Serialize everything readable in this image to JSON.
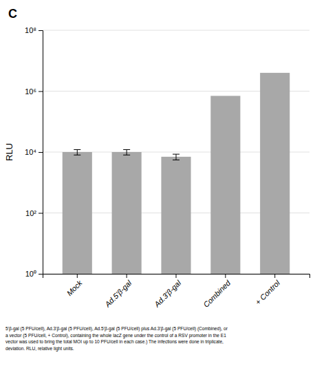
{
  "chart_data": {
    "type": "bar",
    "title": "C",
    "categories": [
      "Mock",
      "Ad.5'β-gal",
      "Ad.3'β-gal",
      "Combined",
      "+ Control"
    ],
    "values": [
      10000,
      10000,
      7000,
      700000,
      4000000
    ],
    "error_bars": [
      2000,
      2000,
      1500,
      0,
      0
    ],
    "color": "#a8a8a8",
    "log": "y",
    "ylabel": "RLU",
    "ylim": [
      1,
      100000000
    ],
    "yticks": [
      {
        "value": 1,
        "label": "10⁰"
      },
      {
        "value": 100,
        "label": "10²"
      },
      {
        "value": 10000,
        "label": "10⁴"
      },
      {
        "value": 1000000,
        "label": "10⁶"
      },
      {
        "value": 100000000,
        "label": "10⁸"
      }
    ],
    "grid": true,
    "annotations": [
      "5'β-gal (5 PFU/cell), Ad.3'β-gal (5 PFU/cell), Ad.5'β-gal (5 PFU/cell) plus Ad.3'β-gal (5 PFU/cell) (Combined), or\na vector (5 PFU/cell, + Control), containing the whole lacZ gene under the control of a RSV promoter in the E1\nvector was used to bring the total MOI up to 10 PFU/cell in each case.) The infections were done in triplicate,\ndeviation. RLU, relative light units."
    ]
  }
}
